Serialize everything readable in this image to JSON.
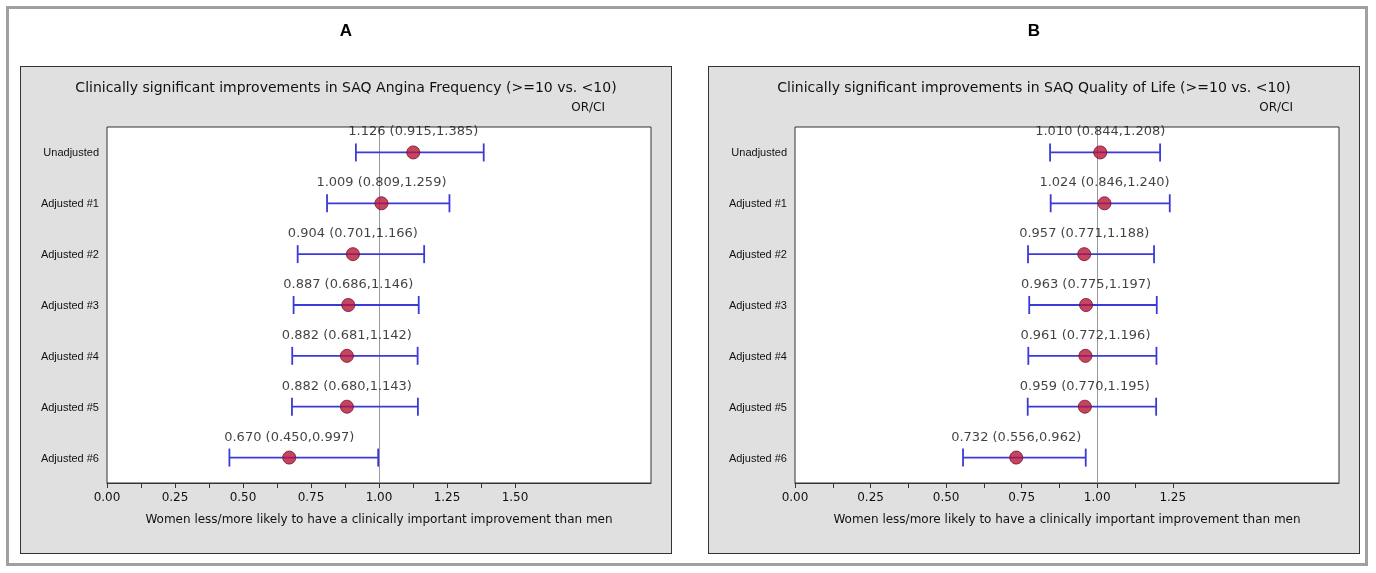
{
  "chart_data": [
    {
      "type": "scatter",
      "orientation": "horizontal",
      "title": "A",
      "subtitle": "Clinically significant improvements in SAQ Angina Frequency (>=10 vs. <10)",
      "xlabel": "Women less/more likely to have a clinically important improvement than men",
      "annotations": [
        "OR/CI"
      ],
      "marker": "circle",
      "categories": [
        "Unadjusted",
        "Adjusted #1",
        "Adjusted #2",
        "Adjusted #3",
        "Adjusted #4",
        "Adjusted #5",
        "Adjusted #6"
      ],
      "series": [
        {
          "color": "#b5173a",
          "values": [
            1.126,
            1.009,
            0.904,
            0.887,
            0.882,
            0.882,
            0.67
          ],
          "errors": [
            [
              0.915,
              1.385
            ],
            [
              0.809,
              1.259
            ],
            [
              0.701,
              1.166
            ],
            [
              0.686,
              1.146
            ],
            [
              0.681,
              1.142
            ],
            [
              0.68,
              1.143
            ],
            [
              0.45,
              0.997
            ]
          ],
          "value_labels": [
            "1.126 (0.915,1.385)",
            "1.009 (0.809,1.259)",
            "0.904 (0.701,1.166)",
            "0.887 (0.686,1.146)",
            "0.882 (0.681,1.142)",
            "0.882 (0.680,1.143)",
            "0.670 (0.450,0.997)"
          ]
        }
      ],
      "ref_lines": [
        {
          "axis": "x",
          "value": 1,
          "color": "#999999"
        }
      ],
      "xlim": [
        0,
        2.0
      ],
      "xticks": [
        {
          "value": 0,
          "label": "0.00"
        },
        {
          "value": 0.125,
          "label": null
        },
        {
          "value": 0.25,
          "label": "0.25"
        },
        {
          "value": 0.375,
          "label": null
        },
        {
          "value": 0.5,
          "label": "0.50"
        },
        {
          "value": 0.625,
          "label": null
        },
        {
          "value": 0.75,
          "label": "0.75"
        },
        {
          "value": 0.875,
          "label": null
        },
        {
          "value": 1,
          "label": "1.00"
        },
        {
          "value": 1.125,
          "label": null
        },
        {
          "value": 1.25,
          "label": "1.25"
        },
        {
          "value": 1.375,
          "label": null
        },
        {
          "value": 1.5,
          "label": "1.50"
        }
      ]
    },
    {
      "type": "scatter",
      "orientation": "horizontal",
      "title": "B",
      "subtitle": "Clinically significant improvements in SAQ Quality of Life (>=10 vs. <10)",
      "xlabel": "Women less/more likely to have a clinically important improvement than men",
      "annotations": [
        "OR/CI"
      ],
      "marker": "circle",
      "categories": [
        "Unadjusted",
        "Adjusted #1",
        "Adjusted #2",
        "Adjusted #3",
        "Adjusted #4",
        "Adjusted #5",
        "Adjusted #6"
      ],
      "series": [
        {
          "color": "#b5173a",
          "values": [
            1.01,
            1.024,
            0.957,
            0.963,
            0.961,
            0.959,
            0.732
          ],
          "errors": [
            [
              0.844,
              1.208
            ],
            [
              0.846,
              1.24
            ],
            [
              0.771,
              1.188
            ],
            [
              0.775,
              1.197
            ],
            [
              0.772,
              1.196
            ],
            [
              0.77,
              1.195
            ],
            [
              0.556,
              0.962
            ]
          ],
          "value_labels": [
            "1.010 (0.844,1.208)",
            "1.024 (0.846,1.240)",
            "0.957 (0.771,1.188)",
            "0.963 (0.775,1.197)",
            "0.961 (0.772,1.196)",
            "0.959 (0.770,1.195)",
            "0.732 (0.556,0.962)"
          ]
        }
      ],
      "ref_lines": [
        {
          "axis": "x",
          "value": 1,
          "color": "#999999"
        }
      ],
      "xlim": [
        0,
        1.8
      ],
      "xticks": [
        {
          "value": 0,
          "label": "0.00"
        },
        {
          "value": 0.125,
          "label": null
        },
        {
          "value": 0.25,
          "label": "0.25"
        },
        {
          "value": 0.375,
          "label": null
        },
        {
          "value": 0.5,
          "label": "0.50"
        },
        {
          "value": 0.625,
          "label": null
        },
        {
          "value": 0.75,
          "label": "0.75"
        },
        {
          "value": 0.875,
          "label": null
        },
        {
          "value": 1,
          "label": "1.00"
        },
        {
          "value": 1.125,
          "label": null
        },
        {
          "value": 1.25,
          "label": "1.25"
        }
      ]
    }
  ]
}
